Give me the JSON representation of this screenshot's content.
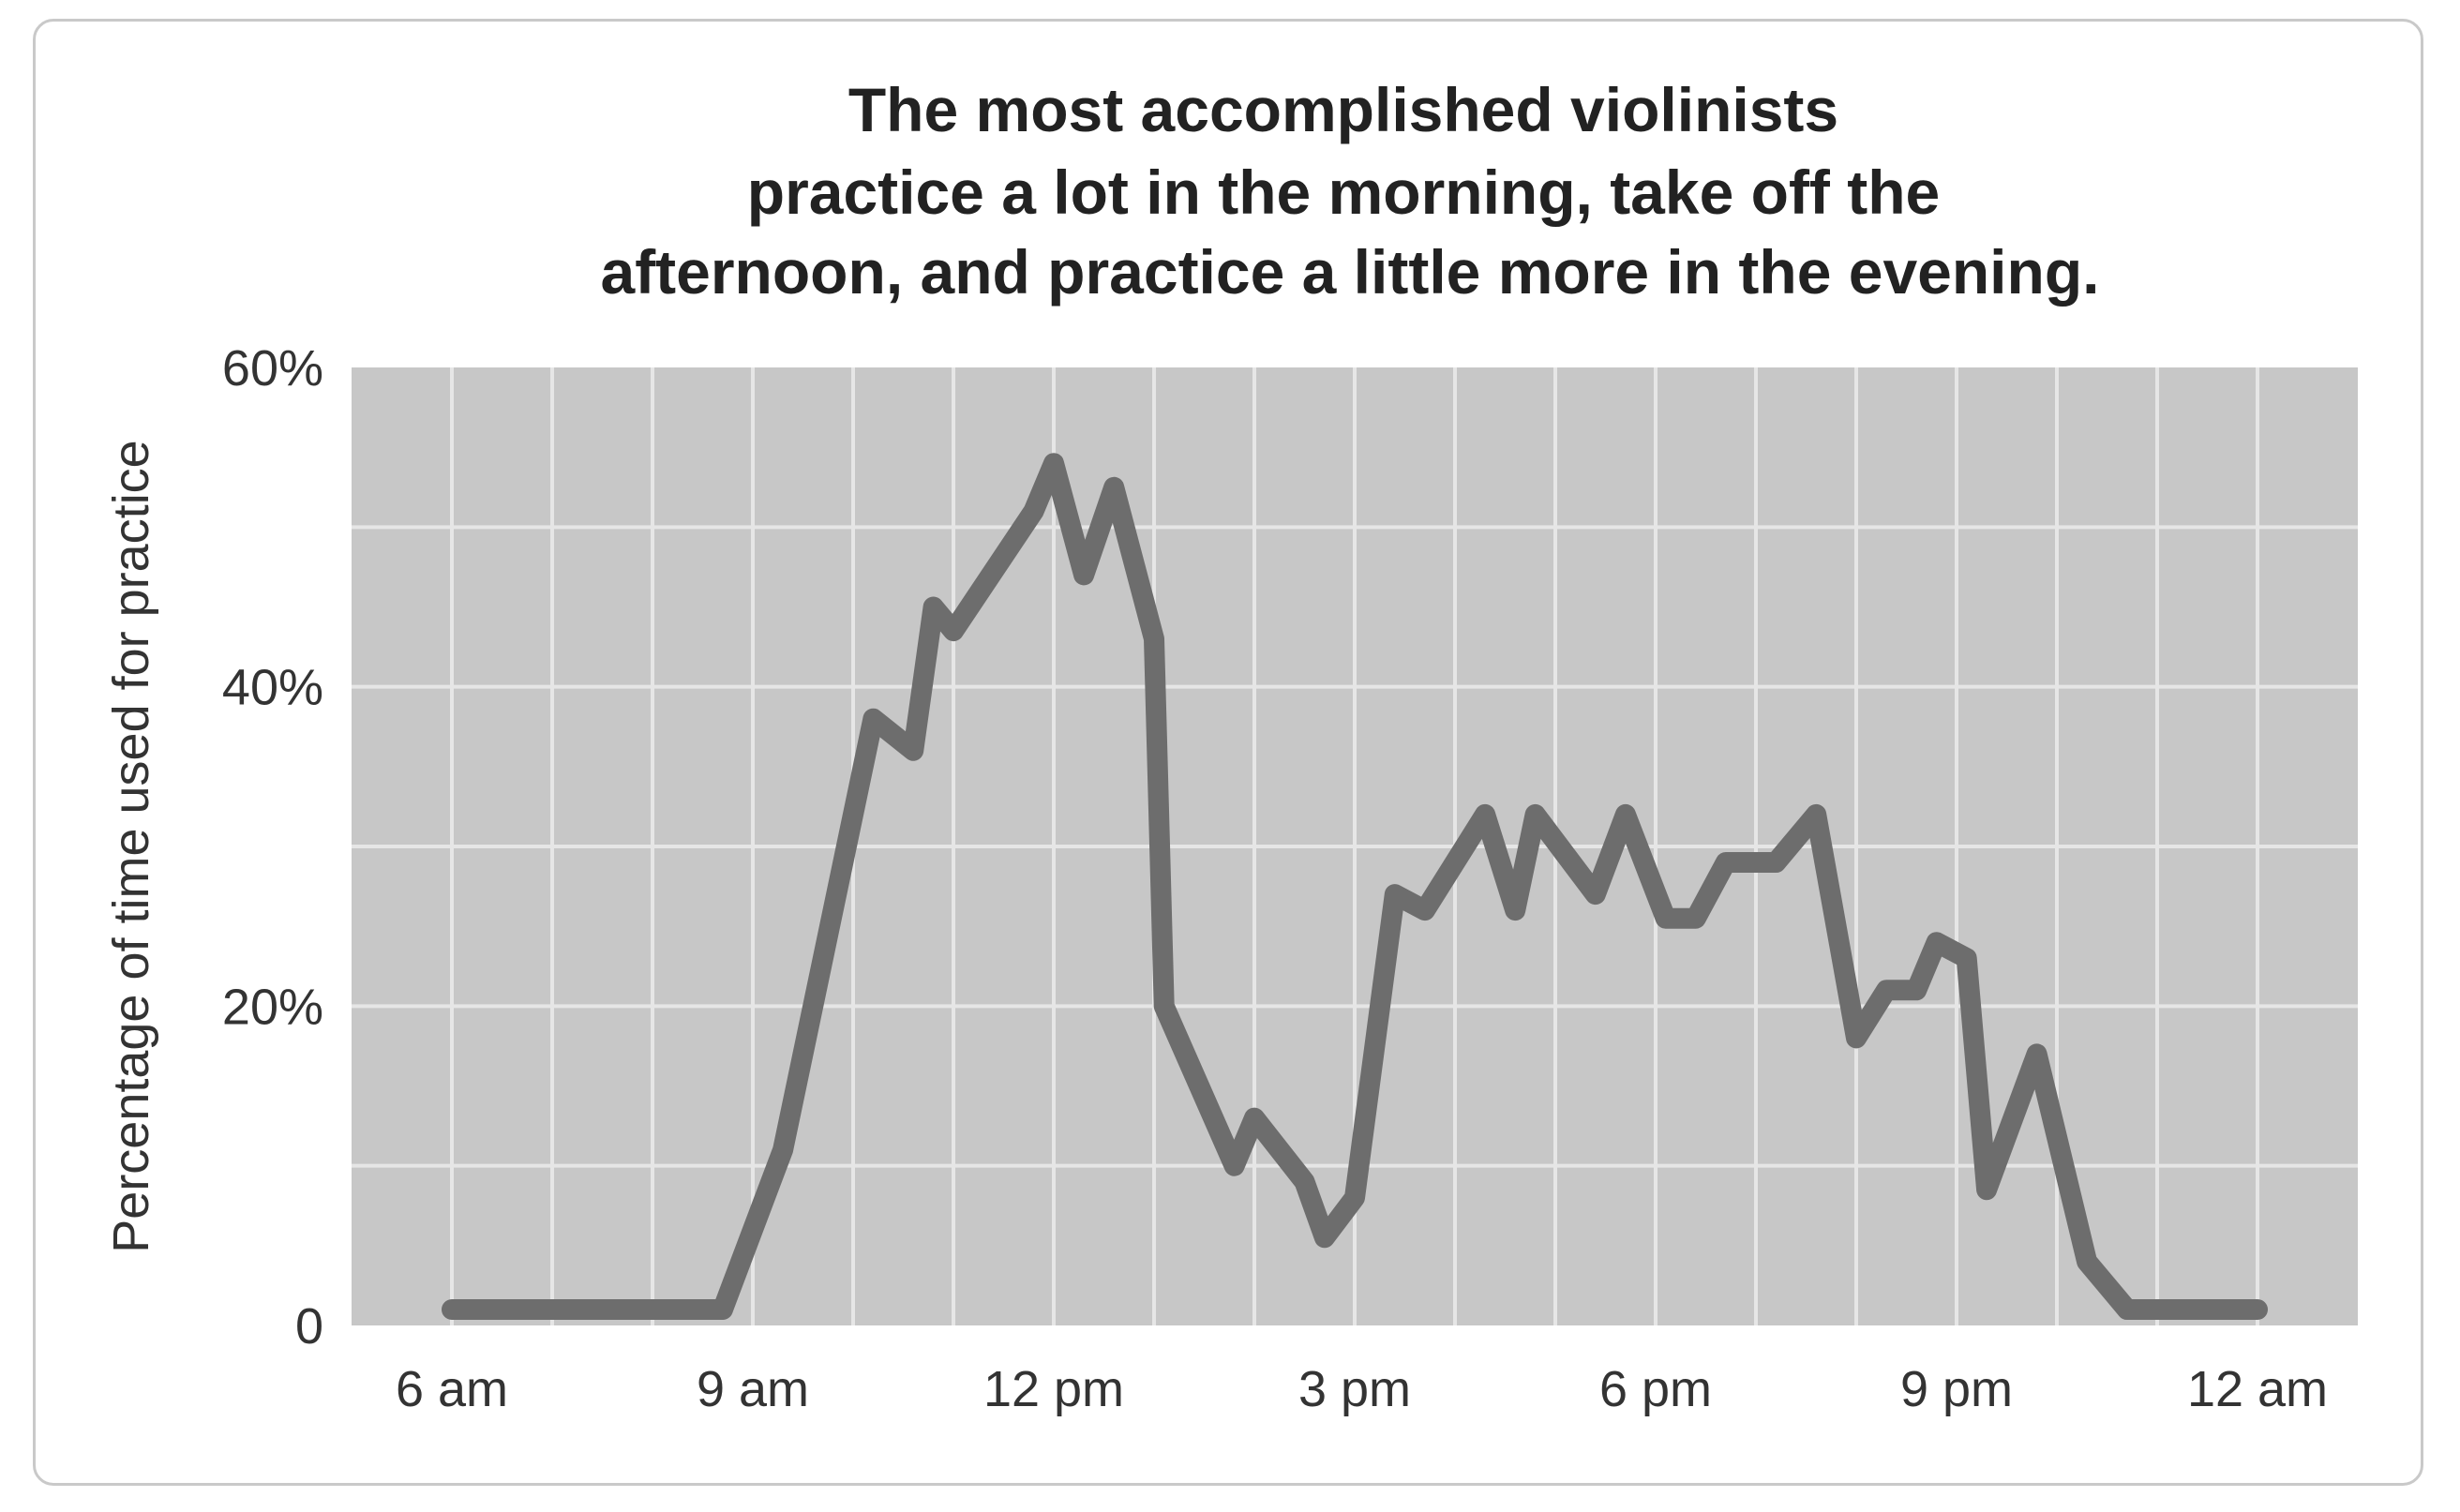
{
  "chart_data": {
    "type": "line",
    "title_lines": [
      "The most accomplished violinists",
      "practice a lot in the morning, take off the",
      "afternoon, and practice a little more in the evening."
    ],
    "xlabel": "",
    "ylabel": "Percentage of time used for practice",
    "x_unit": "hours (6 = 6 am, 24 = 12 am)",
    "xlim": [
      5,
      25
    ],
    "ylim": [
      0,
      60
    ],
    "x_ticks": [
      {
        "value": 6,
        "label": "6 am"
      },
      {
        "value": 9,
        "label": "9 am"
      },
      {
        "value": 12,
        "label": "12 pm"
      },
      {
        "value": 15,
        "label": "3 pm"
      },
      {
        "value": 18,
        "label": "6 pm"
      },
      {
        "value": 21,
        "label": "9 pm"
      },
      {
        "value": 24,
        "label": "12 am"
      }
    ],
    "y_ticks": [
      {
        "value": 0,
        "label": "0"
      },
      {
        "value": 20,
        "label": "20%"
      },
      {
        "value": 40,
        "label": "40%"
      },
      {
        "value": 60,
        "label": "60%"
      }
    ],
    "grid": true,
    "series": [
      {
        "color": "#6d6d6d",
        "points": [
          [
            6.0,
            1
          ],
          [
            8.7,
            1
          ],
          [
            9.3,
            11
          ],
          [
            10.2,
            38
          ],
          [
            10.6,
            36
          ],
          [
            10.8,
            45
          ],
          [
            11.0,
            43.5
          ],
          [
            11.8,
            51
          ],
          [
            12.0,
            54
          ],
          [
            12.3,
            47
          ],
          [
            12.6,
            52.5
          ],
          [
            13.0,
            43
          ],
          [
            13.1,
            20
          ],
          [
            13.8,
            10
          ],
          [
            14.0,
            13
          ],
          [
            14.5,
            9
          ],
          [
            14.7,
            5.5
          ],
          [
            15.0,
            8
          ],
          [
            15.4,
            27
          ],
          [
            15.7,
            26
          ],
          [
            16.3,
            32
          ],
          [
            16.6,
            26
          ],
          [
            16.8,
            32
          ],
          [
            17.4,
            27
          ],
          [
            17.7,
            32
          ],
          [
            18.1,
            25.5
          ],
          [
            18.4,
            25.5
          ],
          [
            18.7,
            29
          ],
          [
            19.2,
            29
          ],
          [
            19.6,
            32
          ],
          [
            20.0,
            18
          ],
          [
            20.3,
            21
          ],
          [
            20.6,
            21
          ],
          [
            20.8,
            24
          ],
          [
            21.1,
            23
          ],
          [
            21.3,
            8.5
          ],
          [
            21.8,
            17
          ],
          [
            22.3,
            4
          ],
          [
            22.7,
            1
          ],
          [
            24.0,
            1
          ]
        ]
      }
    ]
  },
  "colors": {
    "plot_background": "#c7c7c7",
    "grid": "#e6e6e6",
    "line": "#6d6d6d",
    "frame": "#c9c9c9"
  }
}
